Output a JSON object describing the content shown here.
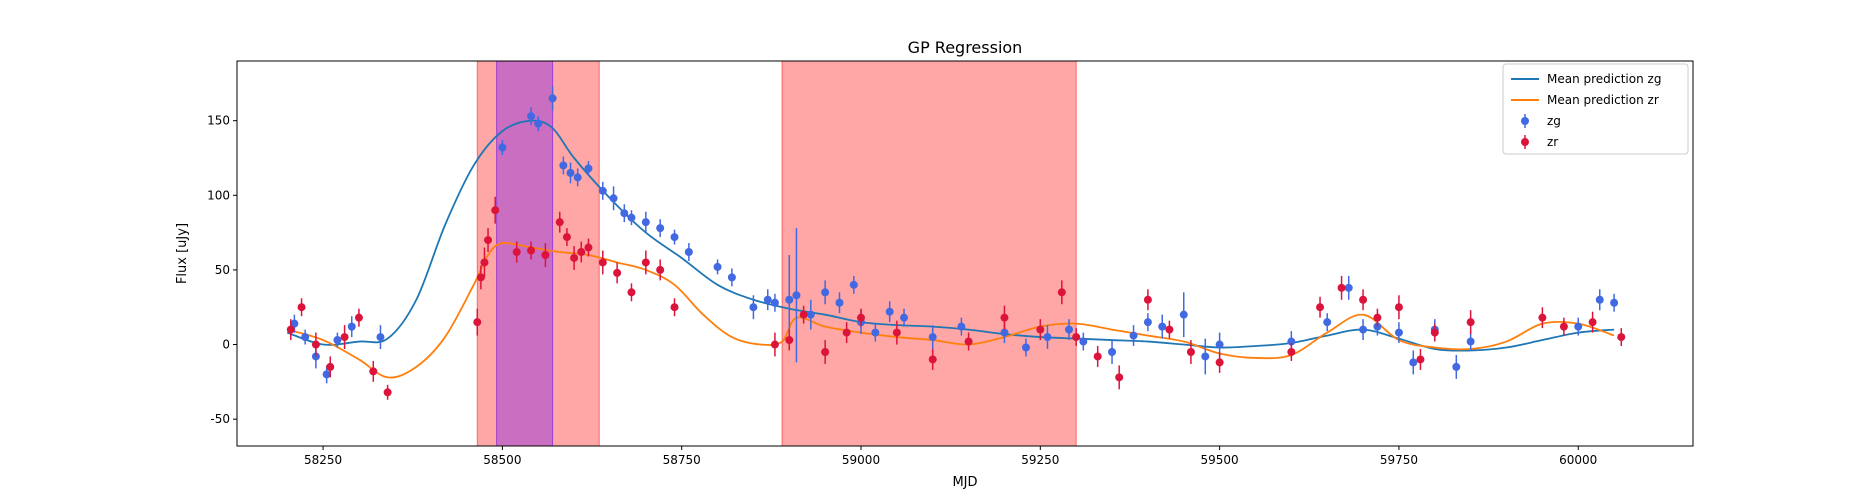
{
  "chart_data": {
    "type": "scatter",
    "title": "GP Regression",
    "xlabel": "MJD",
    "ylabel": "Flux [uJy]",
    "xlim": [
      58130,
      60160
    ],
    "ylim": [
      -68,
      190
    ],
    "xticks": [
      58250,
      58500,
      58750,
      59000,
      59250,
      59500,
      59750,
      60000
    ],
    "yticks": [
      -50,
      0,
      50,
      100,
      150
    ],
    "grid": false,
    "legend_position": "top-right",
    "colors": {
      "zg_line": "#1f77b4",
      "zr_line": "#ff7f0e",
      "zg_points": "#4169e1",
      "zr_points": "#dc143c",
      "band_red": "#ff4d4d",
      "band_purple": "#8a2be2"
    },
    "shaded_regions": [
      {
        "x0": 58465,
        "x1": 58635,
        "color": "red"
      },
      {
        "x0": 58890,
        "x1": 59300,
        "color": "red"
      },
      {
        "x0": 58492,
        "x1": 58570,
        "color": "purple"
      }
    ],
    "series": [
      {
        "name": "Mean prediction zg",
        "kind": "line",
        "x": [
          58200,
          58250,
          58300,
          58340,
          58380,
          58420,
          58460,
          58500,
          58540,
          58570,
          58600,
          58650,
          58700,
          58750,
          58800,
          58850,
          58900,
          58950,
          59000,
          59050,
          59100,
          59150,
          59200,
          59250,
          59300,
          59350,
          59400,
          59450,
          59500,
          59550,
          59600,
          59650,
          59700,
          59750,
          59800,
          59850,
          59900,
          59950,
          60000,
          60050
        ],
        "y": [
          8,
          0,
          2,
          4,
          30,
          80,
          120,
          143,
          150,
          145,
          125,
          98,
          75,
          58,
          40,
          30,
          24,
          20,
          15,
          13,
          12,
          10,
          7,
          5,
          4,
          3,
          2,
          0,
          -2,
          -1,
          1,
          6,
          10,
          4,
          -3,
          -4,
          -2,
          3,
          8,
          10
        ]
      },
      {
        "name": "Mean prediction zr",
        "kind": "line",
        "x": [
          58200,
          58250,
          58300,
          58340,
          58380,
          58420,
          58460,
          58480,
          58500,
          58540,
          58580,
          58620,
          58660,
          58700,
          58740,
          58780,
          58820,
          58860,
          58890,
          58910,
          58950,
          59000,
          59050,
          59100,
          59150,
          59200,
          59250,
          59300,
          59350,
          59400,
          59450,
          59500,
          59550,
          59600,
          59650,
          59700,
          59750,
          59800,
          59850,
          59900,
          59950,
          60000,
          60050
        ],
        "y": [
          10,
          3,
          -10,
          -22,
          -15,
          5,
          40,
          60,
          68,
          65,
          62,
          60,
          55,
          50,
          40,
          20,
          5,
          0,
          2,
          18,
          12,
          8,
          5,
          3,
          0,
          5,
          12,
          14,
          10,
          6,
          2,
          -6,
          -9,
          -7,
          8,
          20,
          3,
          -2,
          -3,
          2,
          14,
          14,
          6
        ]
      },
      {
        "name": "zg",
        "kind": "points",
        "x": [
          58210,
          58225,
          58240,
          58255,
          58270,
          58290,
          58330,
          58500,
          58540,
          58550,
          58570,
          58585,
          58595,
          58605,
          58620,
          58640,
          58655,
          58670,
          58680,
          58700,
          58720,
          58740,
          58760,
          58800,
          58820,
          58850,
          58870,
          58880,
          58900,
          58910,
          58930,
          58950,
          58970,
          58990,
          59000,
          59020,
          59040,
          59060,
          59100,
          59140,
          59200,
          59230,
          59260,
          59290,
          59310,
          59350,
          59380,
          59400,
          59420,
          59450,
          59480,
          59500,
          59600,
          59650,
          59680,
          59700,
          59720,
          59750,
          59770,
          59800,
          59830,
          59850,
          60000,
          60030,
          60050
        ],
        "y": [
          14,
          5,
          -8,
          -20,
          3,
          12,
          5,
          132,
          153,
          148,
          165,
          120,
          115,
          112,
          118,
          103,
          98,
          88,
          85,
          82,
          78,
          72,
          62,
          52,
          45,
          25,
          30,
          28,
          30,
          33,
          20,
          35,
          28,
          40,
          15,
          8,
          22,
          18,
          5,
          12,
          8,
          -2,
          5,
          10,
          2,
          -5,
          6,
          15,
          12,
          20,
          -8,
          0,
          2,
          15,
          38,
          10,
          12,
          8,
          -12,
          10,
          -15,
          2,
          12,
          30,
          28
        ],
        "err": [
          6,
          5,
          8,
          6,
          5,
          7,
          8,
          5,
          6,
          5,
          8,
          6,
          7,
          6,
          5,
          6,
          8,
          6,
          5,
          7,
          6,
          5,
          6,
          5,
          6,
          8,
          7,
          6,
          30,
          45,
          10,
          8,
          7,
          6,
          8,
          6,
          7,
          6,
          8,
          6,
          7,
          6,
          8,
          7,
          6,
          8,
          7,
          6,
          8,
          15,
          12,
          8,
          7,
          6,
          8,
          7,
          6,
          7,
          8,
          7,
          8,
          6,
          6,
          7,
          6
        ]
      },
      {
        "name": "zr",
        "kind": "points",
        "x": [
          58205,
          58220,
          58240,
          58260,
          58280,
          58300,
          58320,
          58340,
          58465,
          58470,
          58475,
          58480,
          58490,
          58520,
          58540,
          58560,
          58580,
          58590,
          58600,
          58610,
          58620,
          58640,
          58660,
          58680,
          58700,
          58720,
          58740,
          58880,
          58900,
          58920,
          58950,
          58980,
          59000,
          59050,
          59100,
          59150,
          59200,
          59250,
          59280,
          59300,
          59330,
          59360,
          59400,
          59430,
          59460,
          59500,
          59600,
          59640,
          59670,
          59700,
          59720,
          59750,
          59780,
          59800,
          59850,
          59950,
          59980,
          60020,
          60060
        ],
        "y": [
          10,
          25,
          0,
          -15,
          5,
          18,
          -18,
          -32,
          15,
          45,
          55,
          70,
          90,
          62,
          63,
          60,
          82,
          72,
          58,
          62,
          65,
          55,
          48,
          35,
          55,
          50,
          25,
          0,
          3,
          20,
          -5,
          8,
          18,
          8,
          -10,
          2,
          18,
          10,
          35,
          5,
          -8,
          -22,
          30,
          10,
          -5,
          -12,
          -5,
          25,
          38,
          30,
          18,
          25,
          -10,
          8,
          15,
          18,
          12,
          15,
          5
        ],
        "err": [
          7,
          6,
          8,
          7,
          8,
          6,
          7,
          5,
          9,
          8,
          10,
          8,
          9,
          7,
          6,
          8,
          7,
          6,
          8,
          7,
          6,
          8,
          7,
          6,
          8,
          7,
          6,
          8,
          7,
          6,
          8,
          7,
          6,
          8,
          7,
          6,
          8,
          7,
          8,
          6,
          7,
          8,
          7,
          6,
          8,
          7,
          6,
          7,
          8,
          7,
          6,
          8,
          7,
          6,
          8,
          7,
          6,
          7,
          6
        ]
      }
    ]
  }
}
